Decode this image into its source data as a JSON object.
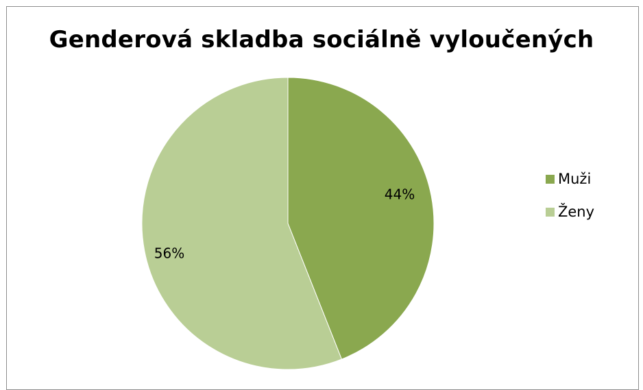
{
  "chart_data": {
    "type": "pie",
    "title": "Genderová skladba sociálně vyloučených",
    "categories": [
      "Muži",
      "Ženy"
    ],
    "values": [
      44,
      56
    ],
    "labels": [
      "44%",
      "56%"
    ],
    "colors": [
      "#8aa84f",
      "#b9ce95"
    ],
    "legend_position": "right"
  }
}
